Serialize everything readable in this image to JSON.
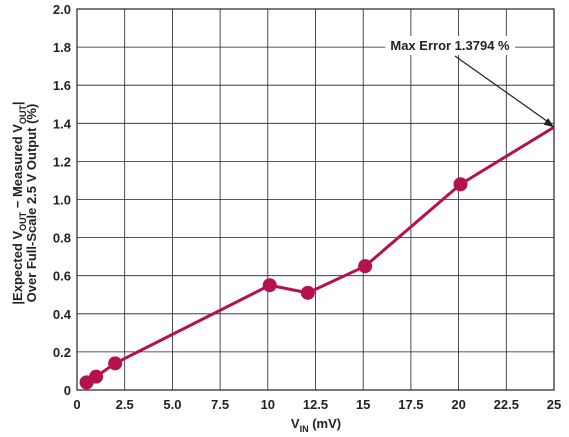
{
  "chart_data": {
    "type": "line",
    "xlabel": {
      "main": "V",
      "sub": "IN",
      "unit": " (mV)"
    },
    "ylabel": {
      "line1": [
        "|Expected V",
        "OUT",
        " − Measured V",
        "OUT",
        "|"
      ],
      "line2": "Over Full-Scale 2.5 V Output (%)"
    },
    "xlim": [
      0,
      25
    ],
    "ylim": [
      0,
      2.0
    ],
    "xticks": [
      "0",
      "2.5",
      "5.0",
      "7.5",
      "10",
      "12.5",
      "15",
      "17.5",
      "20",
      "22.5",
      "25"
    ],
    "yticks": [
      "0",
      "0.2",
      "0.4",
      "0.6",
      "0.8",
      "1.0",
      "1.2",
      "1.4",
      "1.6",
      "1.8",
      "2.0"
    ],
    "grid": true,
    "series": [
      {
        "color": "#b5104f",
        "x": [
          0.5,
          1.0,
          2.0,
          10.1,
          12.1,
          15.1,
          20.1,
          25.0
        ],
        "y": [
          0.04,
          0.07,
          0.14,
          0.55,
          0.51,
          0.65,
          1.08,
          1.3794
        ],
        "markers": [
          true,
          true,
          true,
          true,
          true,
          true,
          true,
          false
        ]
      }
    ],
    "annotation": {
      "text": "Max Error 1.3794 %",
      "x": 25.0,
      "y": 1.3794
    }
  }
}
